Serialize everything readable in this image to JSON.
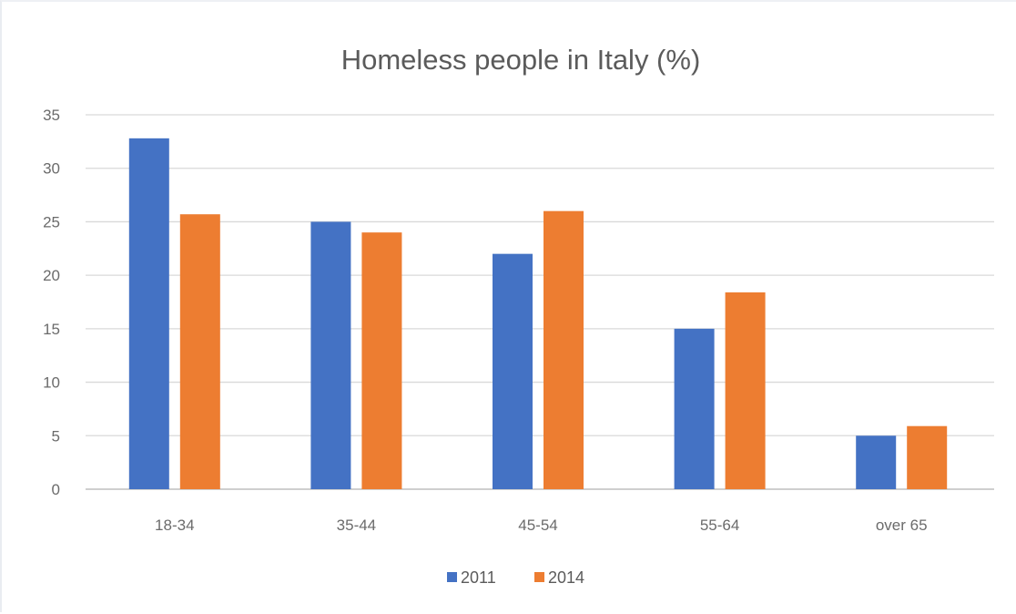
{
  "chart_data": {
    "type": "bar",
    "title": "Homeless people in Italy (%)",
    "categories": [
      "18-34",
      "35-44",
      "45-54",
      "55-64",
      "over 65"
    ],
    "series": [
      {
        "name": "2011",
        "color": "#4472c4",
        "values": [
          32.8,
          25,
          22,
          15,
          5
        ]
      },
      {
        "name": "2014",
        "color": "#ed7d31",
        "values": [
          25.7,
          24,
          26,
          18.4,
          5.9
        ]
      }
    ],
    "yticks": [
      "0",
      "5",
      "10",
      "15",
      "20",
      "25",
      "30",
      "35"
    ],
    "ylim": [
      0,
      35
    ],
    "xlabel": "",
    "ylabel": "",
    "grid": true,
    "legend_position": "bottom"
  }
}
